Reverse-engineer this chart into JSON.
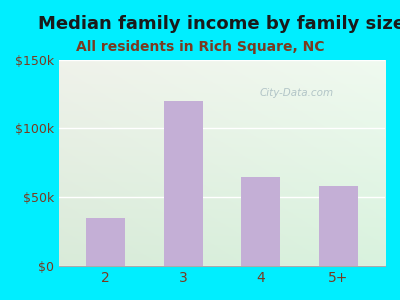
{
  "title": "Median family income by family size",
  "subtitle": "All residents in Rich Square, NC",
  "categories": [
    "2",
    "3",
    "4",
    "5+"
  ],
  "values": [
    35000,
    120000,
    65000,
    58000
  ],
  "bar_color": "#c4afd6",
  "background_outer": "#00eeff",
  "title_color": "#1a1a1a",
  "subtitle_color": "#7a3a20",
  "tick_label_color": "#7a3a20",
  "ytick_labels": [
    "$0",
    "$50k",
    "$100k",
    "$150k"
  ],
  "ytick_values": [
    0,
    50000,
    100000,
    150000
  ],
  "ylim": [
    0,
    150000
  ],
  "watermark": "City-Data.com",
  "title_fontsize": 13,
  "subtitle_fontsize": 10,
  "inner_bg_topleft": "#daf0e0",
  "inner_bg_topright": "#f0faf5",
  "inner_bg_bottom": "#e8f8ee"
}
